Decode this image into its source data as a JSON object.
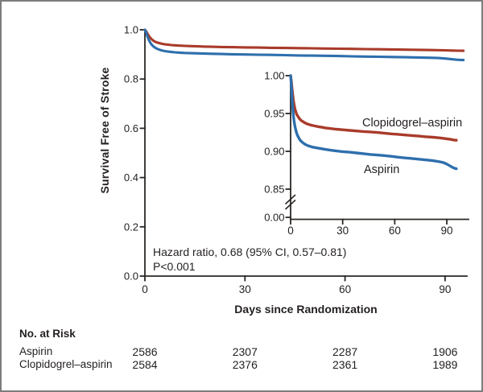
{
  "chart_data": {
    "type": "line",
    "title": "",
    "xlabel": "Days since Randomization",
    "ylabel": "Survival Free of Stroke",
    "annotations": {
      "hazard": "Hazard ratio, 0.68 (95% CI, 0.57–0.81)",
      "pvalue": "P<0.001"
    },
    "main_axes": {
      "x_ticks": [
        "0",
        "30",
        "60",
        "90"
      ],
      "x_tick_values": [
        0,
        30,
        60,
        90
      ],
      "y_ticks": [
        "1.0",
        "0.8",
        "0.6",
        "0.4",
        "0.2",
        "0.0"
      ],
      "xlim": [
        0,
        96
      ],
      "ylim": [
        0,
        1
      ],
      "grid": false
    },
    "inset_axes": {
      "x_ticks": [
        "0",
        "30",
        "60",
        "90"
      ],
      "x_tick_values": [
        0,
        30,
        60,
        90
      ],
      "y_ticks": [
        "1.00",
        "0.95",
        "0.90",
        "0.85",
        "0.00"
      ],
      "y_tick_values": [
        1.0,
        0.95,
        0.9,
        0.85,
        0.0
      ],
      "xlim": [
        0,
        96
      ],
      "ylim_visible": [
        0.85,
        1.0
      ],
      "axis_break": true
    },
    "axis_color": "#2a2724",
    "text_color": "#231f20",
    "series": [
      {
        "name": "Clopidogrel–aspirin",
        "color": "#a93b2a",
        "points": [
          [
            0,
            1.0
          ],
          [
            0.4,
            0.993
          ],
          [
            0.8,
            0.984
          ],
          [
            1.2,
            0.975
          ],
          [
            1.6,
            0.968
          ],
          [
            2,
            0.962
          ],
          [
            2.5,
            0.956
          ],
          [
            3,
            0.952
          ],
          [
            3.5,
            0.949
          ],
          [
            4,
            0.947
          ],
          [
            5,
            0.9435
          ],
          [
            6,
            0.941
          ],
          [
            7,
            0.9395
          ],
          [
            8,
            0.938
          ],
          [
            9,
            0.9368
          ],
          [
            10,
            0.9358
          ],
          [
            12,
            0.9345
          ],
          [
            14,
            0.9335
          ],
          [
            16,
            0.9326
          ],
          [
            18,
            0.9318
          ],
          [
            20,
            0.931
          ],
          [
            23,
            0.9301
          ],
          [
            26,
            0.9293
          ],
          [
            30,
            0.9285
          ],
          [
            34,
            0.9277
          ],
          [
            38,
            0.9269
          ],
          [
            42,
            0.9262
          ],
          [
            46,
            0.9256
          ],
          [
            50,
            0.9249
          ],
          [
            54,
            0.924
          ],
          [
            58,
            0.9231
          ],
          [
            62,
            0.9224
          ],
          [
            66,
            0.9216
          ],
          [
            70,
            0.9209
          ],
          [
            74,
            0.9201
          ],
          [
            78,
            0.9193
          ],
          [
            82,
            0.9186
          ],
          [
            86,
            0.9178
          ],
          [
            90,
            0.9166
          ],
          [
            92,
            0.9158
          ],
          [
            94,
            0.915
          ],
          [
            95.5,
            0.9147
          ]
        ]
      },
      {
        "name": "Aspirin",
        "color": "#2e6fad",
        "points": [
          [
            0,
            1.0
          ],
          [
            0.4,
            0.988
          ],
          [
            0.8,
            0.972
          ],
          [
            1.2,
            0.958
          ],
          [
            1.6,
            0.948
          ],
          [
            2,
            0.94
          ],
          [
            2.5,
            0.933
          ],
          [
            3,
            0.928
          ],
          [
            3.5,
            0.924
          ],
          [
            4,
            0.921
          ],
          [
            5,
            0.9165
          ],
          [
            6,
            0.9135
          ],
          [
            7,
            0.9115
          ],
          [
            8,
            0.9098
          ],
          [
            9,
            0.9085
          ],
          [
            10,
            0.9075
          ],
          [
            12,
            0.906
          ],
          [
            14,
            0.905
          ],
          [
            16,
            0.9042
          ],
          [
            18,
            0.9034
          ],
          [
            20,
            0.9026
          ],
          [
            23,
            0.9015
          ],
          [
            26,
            0.9006
          ],
          [
            30,
            0.8996
          ],
          [
            34,
            0.8988
          ],
          [
            38,
            0.8979
          ],
          [
            42,
            0.8969
          ],
          [
            46,
            0.8959
          ],
          [
            50,
            0.8951
          ],
          [
            54,
            0.8944
          ],
          [
            58,
            0.8934
          ],
          [
            62,
            0.8922
          ],
          [
            66,
            0.8913
          ],
          [
            70,
            0.8905
          ],
          [
            74,
            0.8896
          ],
          [
            78,
            0.8886
          ],
          [
            82,
            0.8877
          ],
          [
            86,
            0.8862
          ],
          [
            88,
            0.8852
          ],
          [
            90,
            0.8832
          ],
          [
            92,
            0.8805
          ],
          [
            93.5,
            0.8785
          ],
          [
            95,
            0.8772
          ],
          [
            95.5,
            0.877
          ]
        ]
      }
    ]
  },
  "risk_table": {
    "title": "No. at Risk",
    "rows": [
      {
        "label": "Aspirin",
        "values": [
          "2586",
          "2307",
          "2287",
          "1906"
        ]
      },
      {
        "label": "Clopidogrel–aspirin",
        "values": [
          "2584",
          "2376",
          "2361",
          "1989"
        ]
      }
    ]
  }
}
